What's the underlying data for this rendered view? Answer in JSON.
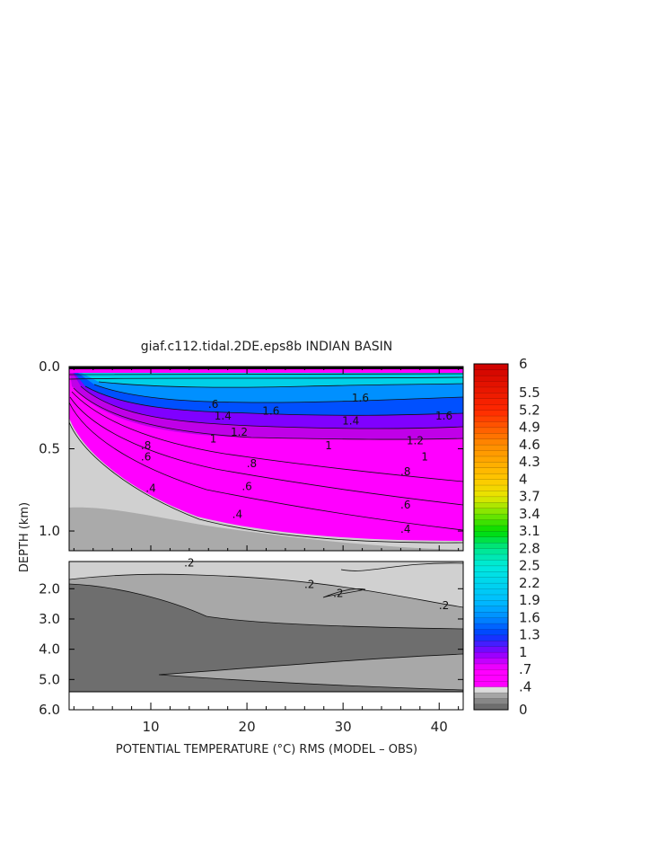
{
  "chart_data": {
    "type": "heatmap",
    "title": "giaf.c112.tidal.2DE.eps8b INDIAN BASIN",
    "xlabel": "POTENTIAL TEMPERATURE (°C) RMS (MODEL – OBS)",
    "ylabel": "DEPTH (km)",
    "x_ticks": [
      "10",
      "20",
      "30",
      "40"
    ],
    "x_tick_values": [
      10,
      20,
      30,
      40
    ],
    "xlim": [
      1.5,
      42.5
    ],
    "upper_panel": {
      "ylim": [
        0.0,
        1.12
      ],
      "y_ticks": [
        "0.0",
        "0.5",
        "1.0"
      ],
      "y_tick_values": [
        0.0,
        0.5,
        1.0
      ]
    },
    "lower_panel": {
      "ylim": [
        1.1,
        6.0
      ],
      "y_ticks": [
        "2.0",
        "3.0",
        "4.0",
        "5.0",
        "6.0"
      ],
      "y_tick_values": [
        2.0,
        3.0,
        4.0,
        5.0,
        6.0
      ]
    },
    "colorbar": {
      "min": 0,
      "max": 6,
      "labels": [
        "6",
        "5.5",
        "5.2",
        "4.9",
        "4.6",
        "4.3",
        "4",
        "3.7",
        "3.4",
        "3.1",
        "2.8",
        "2.5",
        "2.2",
        "1.9",
        "1.6",
        "1.3",
        "1",
        ".7",
        ".4",
        "0"
      ],
      "label_values": [
        6,
        5.5,
        5.2,
        4.9,
        4.6,
        4.3,
        4.0,
        3.7,
        3.4,
        3.1,
        2.8,
        2.5,
        2.2,
        1.9,
        1.6,
        1.3,
        1.0,
        0.7,
        0.4,
        0.0
      ]
    },
    "contour_labels": [
      {
        "text": "1.6",
        "x": 22.5,
        "depth": 0.27
      },
      {
        "text": "1.6",
        "x": 31.8,
        "depth": 0.19
      },
      {
        "text": "1.6",
        "x": 40.5,
        "depth": 0.3
      },
      {
        "text": "1.4",
        "x": 17.5,
        "depth": 0.3
      },
      {
        "text": "1.4",
        "x": 30.8,
        "depth": 0.33
      },
      {
        "text": "1.2",
        "x": 19.2,
        "depth": 0.4
      },
      {
        "text": "1.2",
        "x": 37.5,
        "depth": 0.45
      },
      {
        "text": "1",
        "x": 16.5,
        "depth": 0.44
      },
      {
        "text": "1",
        "x": 28.5,
        "depth": 0.48
      },
      {
        "text": "1",
        "x": 38.5,
        "depth": 0.55
      },
      {
        "text": ".8",
        "x": 9.5,
        "depth": 0.48
      },
      {
        "text": ".8",
        "x": 20.5,
        "depth": 0.59
      },
      {
        "text": ".8",
        "x": 36.5,
        "depth": 0.64
      },
      {
        "text": ".6",
        "x": 9.5,
        "depth": 0.55
      },
      {
        "text": ".6",
        "x": 20.0,
        "depth": 0.73
      },
      {
        "text": ".6",
        "x": 36.5,
        "depth": 0.84
      },
      {
        "text": ".4",
        "x": 10.0,
        "depth": 0.74
      },
      {
        "text": ".4",
        "x": 19.0,
        "depth": 0.9
      },
      {
        "text": ".4",
        "x": 36.5,
        "depth": 0.99
      },
      {
        "text": ".6",
        "x": 16.5,
        "depth": 0.23
      },
      {
        "text": ".2",
        "x": 14.0,
        "depth": 1.15
      },
      {
        "text": ".2",
        "x": 26.5,
        "depth": 1.85
      },
      {
        "text": ".2",
        "x": 29.5,
        "depth": 2.15
      },
      {
        "text": ".2",
        "x": 40.5,
        "depth": 2.55
      }
    ]
  }
}
